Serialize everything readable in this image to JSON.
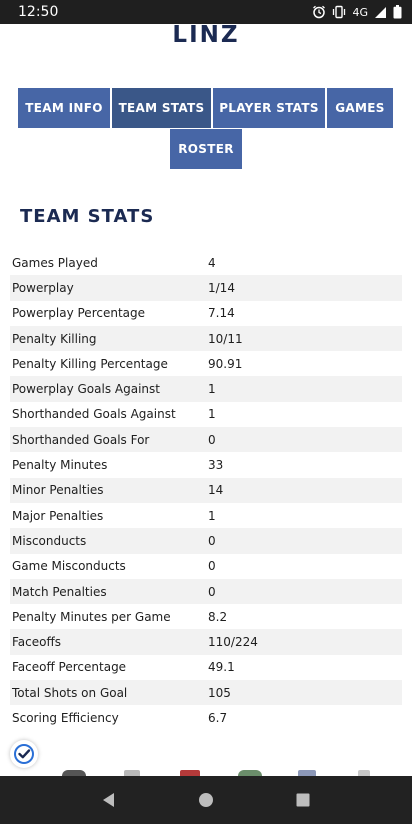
{
  "status_bar": {
    "time": "12:50",
    "network": "4G",
    "icons": [
      "alarm-icon",
      "vibrate-icon",
      "signal-icon",
      "battery-icon"
    ]
  },
  "header": {
    "team_name": "LINZ"
  },
  "tabs": [
    {
      "label": "TEAM INFO",
      "active": false
    },
    {
      "label": "TEAM STATS",
      "active": true
    },
    {
      "label": "PLAYER STATS",
      "active": false
    },
    {
      "label": "GAMES",
      "active": false
    },
    {
      "label": "ROSTER",
      "active": false
    }
  ],
  "section": {
    "title": "TEAM STATS"
  },
  "stats": [
    {
      "label": "Games Played",
      "value": "4"
    },
    {
      "label": "Powerplay",
      "value": "1/14"
    },
    {
      "label": "Powerplay Percentage",
      "value": "7.14"
    },
    {
      "label": "Penalty Killing",
      "value": "10/11"
    },
    {
      "label": "Penalty Killing Percentage",
      "value": "90.91"
    },
    {
      "label": "Powerplay Goals Against",
      "value": "1"
    },
    {
      "label": "Shorthanded Goals Against",
      "value": "1"
    },
    {
      "label": "Shorthanded Goals For",
      "value": "0"
    },
    {
      "label": "Penalty Minutes",
      "value": "33"
    },
    {
      "label": "Minor Penalties",
      "value": "14"
    },
    {
      "label": "Major Penalties",
      "value": "1"
    },
    {
      "label": "Misconducts",
      "value": "0"
    },
    {
      "label": "Game Misconducts",
      "value": "0"
    },
    {
      "label": "Match Penalties",
      "value": "0"
    },
    {
      "label": "Penalty Minutes per Game",
      "value": "8.2"
    },
    {
      "label": "Faceoffs",
      "value": "110/224"
    },
    {
      "label": "Faceoff Percentage",
      "value": "49.1"
    },
    {
      "label": "Total Shots on Goal",
      "value": "105"
    },
    {
      "label": "Scoring Efficiency",
      "value": "6.7"
    }
  ],
  "colors": {
    "primary_navy": "#1b2a52",
    "tab_blue": "#4766a6",
    "tab_active": "#3a5788",
    "row_alt": "#f2f2f2"
  },
  "nav_bar": {
    "icons": [
      "back-icon",
      "home-icon",
      "recents-icon"
    ]
  }
}
